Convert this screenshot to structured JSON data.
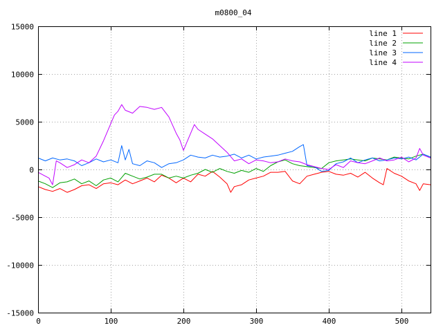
{
  "chart_data": {
    "type": "line",
    "title": "m0800_04",
    "xlabel": "",
    "ylabel": "",
    "xlim": [
      0,
      540
    ],
    "ylim": [
      -15000,
      15000
    ],
    "xticks": [
      0,
      100,
      200,
      300,
      400,
      500
    ],
    "yticks": [
      -15000,
      -10000,
      -5000,
      0,
      5000,
      10000,
      15000
    ],
    "grid": true,
    "legend_position": "top-right",
    "series": [
      {
        "name": "line 1",
        "color": "#ff0000",
        "points": [
          [
            0,
            -1800
          ],
          [
            10,
            -2100
          ],
          [
            20,
            -2300
          ],
          [
            30,
            -2000
          ],
          [
            40,
            -2400
          ],
          [
            50,
            -2100
          ],
          [
            60,
            -1700
          ],
          [
            70,
            -1600
          ],
          [
            80,
            -2000
          ],
          [
            90,
            -1500
          ],
          [
            100,
            -1400
          ],
          [
            110,
            -1600
          ],
          [
            120,
            -1100
          ],
          [
            130,
            -1500
          ],
          [
            140,
            -1200
          ],
          [
            150,
            -900
          ],
          [
            160,
            -1300
          ],
          [
            170,
            -600
          ],
          [
            180,
            -900
          ],
          [
            190,
            -1400
          ],
          [
            200,
            -900
          ],
          [
            210,
            -1300
          ],
          [
            220,
            -500
          ],
          [
            230,
            -700
          ],
          [
            240,
            -200
          ],
          [
            250,
            -800
          ],
          [
            260,
            -1500
          ],
          [
            265,
            -2400
          ],
          [
            270,
            -1800
          ],
          [
            280,
            -1600
          ],
          [
            290,
            -1100
          ],
          [
            300,
            -900
          ],
          [
            310,
            -700
          ],
          [
            320,
            -300
          ],
          [
            330,
            -300
          ],
          [
            340,
            -200
          ],
          [
            350,
            -1200
          ],
          [
            360,
            -1500
          ],
          [
            370,
            -700
          ],
          [
            380,
            -500
          ],
          [
            390,
            -300
          ],
          [
            400,
            -200
          ],
          [
            410,
            -500
          ],
          [
            420,
            -600
          ],
          [
            430,
            -400
          ],
          [
            440,
            -800
          ],
          [
            450,
            -300
          ],
          [
            460,
            -900
          ],
          [
            470,
            -1400
          ],
          [
            475,
            -1600
          ],
          [
            480,
            100
          ],
          [
            490,
            -400
          ],
          [
            500,
            -700
          ],
          [
            510,
            -1200
          ],
          [
            520,
            -1500
          ],
          [
            525,
            -2200
          ],
          [
            530,
            -1500
          ],
          [
            540,
            -1600
          ]
        ]
      },
      {
        "name": "line 2",
        "color": "#00a000",
        "points": [
          [
            0,
            -1200
          ],
          [
            10,
            -1500
          ],
          [
            20,
            -1900
          ],
          [
            30,
            -1400
          ],
          [
            40,
            -1300
          ],
          [
            50,
            -1000
          ],
          [
            60,
            -1500
          ],
          [
            70,
            -1200
          ],
          [
            80,
            -1700
          ],
          [
            90,
            -1100
          ],
          [
            100,
            -900
          ],
          [
            110,
            -1300
          ],
          [
            120,
            -400
          ],
          [
            130,
            -700
          ],
          [
            140,
            -1000
          ],
          [
            150,
            -800
          ],
          [
            160,
            -500
          ],
          [
            170,
            -500
          ],
          [
            180,
            -900
          ],
          [
            190,
            -700
          ],
          [
            200,
            -900
          ],
          [
            210,
            -600
          ],
          [
            220,
            -400
          ],
          [
            230,
            0
          ],
          [
            240,
            -300
          ],
          [
            250,
            100
          ],
          [
            260,
            -200
          ],
          [
            270,
            -400
          ],
          [
            280,
            -100
          ],
          [
            290,
            -300
          ],
          [
            300,
            100
          ],
          [
            310,
            -200
          ],
          [
            320,
            400
          ],
          [
            330,
            800
          ],
          [
            340,
            1000
          ],
          [
            350,
            600
          ],
          [
            360,
            400
          ],
          [
            370,
            300
          ],
          [
            380,
            200
          ],
          [
            390,
            100
          ],
          [
            400,
            700
          ],
          [
            410,
            900
          ],
          [
            420,
            1000
          ],
          [
            430,
            1100
          ],
          [
            440,
            1000
          ],
          [
            450,
            900
          ],
          [
            460,
            1200
          ],
          [
            470,
            1100
          ],
          [
            480,
            1000
          ],
          [
            490,
            1300
          ],
          [
            500,
            1200
          ],
          [
            510,
            1100
          ],
          [
            520,
            1400
          ],
          [
            530,
            1600
          ],
          [
            540,
            1300
          ]
        ]
      },
      {
        "name": "line 3",
        "color": "#0066ff",
        "points": [
          [
            0,
            1200
          ],
          [
            10,
            900
          ],
          [
            20,
            1200
          ],
          [
            30,
            1000
          ],
          [
            40,
            1100
          ],
          [
            50,
            900
          ],
          [
            60,
            400
          ],
          [
            70,
            700
          ],
          [
            80,
            1100
          ],
          [
            90,
            800
          ],
          [
            100,
            1000
          ],
          [
            110,
            700
          ],
          [
            115,
            2500
          ],
          [
            120,
            1000
          ],
          [
            125,
            2100
          ],
          [
            130,
            600
          ],
          [
            140,
            400
          ],
          [
            150,
            900
          ],
          [
            160,
            700
          ],
          [
            170,
            200
          ],
          [
            180,
            600
          ],
          [
            190,
            700
          ],
          [
            200,
            1000
          ],
          [
            210,
            1500
          ],
          [
            220,
            1300
          ],
          [
            230,
            1200
          ],
          [
            240,
            1500
          ],
          [
            250,
            1300
          ],
          [
            260,
            1400
          ],
          [
            270,
            1600
          ],
          [
            280,
            1200
          ],
          [
            290,
            1500
          ],
          [
            300,
            1100
          ],
          [
            310,
            1300
          ],
          [
            320,
            1400
          ],
          [
            330,
            1500
          ],
          [
            340,
            1700
          ],
          [
            350,
            1900
          ],
          [
            360,
            2400
          ],
          [
            365,
            2600
          ],
          [
            370,
            400
          ],
          [
            380,
            300
          ],
          [
            390,
            -200
          ],
          [
            400,
            -100
          ],
          [
            410,
            600
          ],
          [
            420,
            800
          ],
          [
            430,
            1200
          ],
          [
            440,
            700
          ],
          [
            450,
            1000
          ],
          [
            460,
            1200
          ],
          [
            470,
            900
          ],
          [
            480,
            1000
          ],
          [
            490,
            1200
          ],
          [
            500,
            1100
          ],
          [
            510,
            1300
          ],
          [
            520,
            1000
          ],
          [
            530,
            1600
          ],
          [
            540,
            1300
          ]
        ]
      },
      {
        "name": "line 4",
        "color": "#c000ff",
        "points": [
          [
            0,
            -300
          ],
          [
            10,
            -700
          ],
          [
            15,
            -900
          ],
          [
            20,
            -1600
          ],
          [
            25,
            900
          ],
          [
            30,
            700
          ],
          [
            40,
            200
          ],
          [
            50,
            500
          ],
          [
            60,
            1000
          ],
          [
            70,
            700
          ],
          [
            80,
            1400
          ],
          [
            90,
            3000
          ],
          [
            100,
            4800
          ],
          [
            105,
            5700
          ],
          [
            110,
            6100
          ],
          [
            115,
            6800
          ],
          [
            120,
            6200
          ],
          [
            130,
            5900
          ],
          [
            140,
            6600
          ],
          [
            150,
            6500
          ],
          [
            160,
            6300
          ],
          [
            170,
            6500
          ],
          [
            180,
            5500
          ],
          [
            190,
            3800
          ],
          [
            195,
            3100
          ],
          [
            200,
            2000
          ],
          [
            210,
            3800
          ],
          [
            215,
            4700
          ],
          [
            220,
            4200
          ],
          [
            230,
            3700
          ],
          [
            240,
            3200
          ],
          [
            250,
            2500
          ],
          [
            260,
            1800
          ],
          [
            270,
            900
          ],
          [
            280,
            1100
          ],
          [
            290,
            600
          ],
          [
            300,
            1000
          ],
          [
            310,
            900
          ],
          [
            320,
            700
          ],
          [
            330,
            800
          ],
          [
            340,
            1100
          ],
          [
            350,
            900
          ],
          [
            360,
            800
          ],
          [
            370,
            500
          ],
          [
            380,
            300
          ],
          [
            390,
            100
          ],
          [
            400,
            0
          ],
          [
            410,
            500
          ],
          [
            420,
            200
          ],
          [
            430,
            900
          ],
          [
            440,
            700
          ],
          [
            450,
            600
          ],
          [
            460,
            900
          ],
          [
            470,
            1200
          ],
          [
            480,
            900
          ],
          [
            490,
            1000
          ],
          [
            500,
            1300
          ],
          [
            510,
            800
          ],
          [
            520,
            1200
          ],
          [
            525,
            2200
          ],
          [
            530,
            1500
          ],
          [
            540,
            1200
          ]
        ]
      }
    ]
  }
}
